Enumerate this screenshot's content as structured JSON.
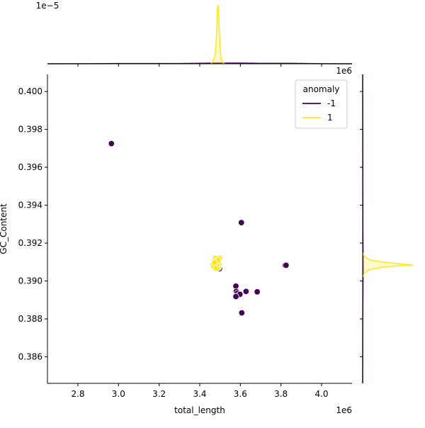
{
  "chart_data": {
    "type": "scatter",
    "xlabel": "total_length",
    "ylabel": "GC_Content",
    "x_offset_label": "1e6",
    "top_x_offset_label": "1e6",
    "top_y_offset_label": "1e−5",
    "xlim": [
      2.65,
      4.15
    ],
    "ylim": [
      0.3846,
      0.4009
    ],
    "x_ticks": [
      "2.8",
      "3.0",
      "3.2",
      "3.4",
      "3.6",
      "3.8",
      "4.0"
    ],
    "x_tick_values": [
      2.8,
      3.0,
      3.2,
      3.4,
      3.6,
      3.8,
      4.0
    ],
    "y_ticks": [
      "0.386",
      "0.388",
      "0.390",
      "0.392",
      "0.394",
      "0.396",
      "0.398",
      "0.400"
    ],
    "y_tick_values": [
      0.386,
      0.388,
      0.39,
      0.392,
      0.394,
      0.396,
      0.398,
      0.4
    ],
    "grid": false,
    "legend": {
      "title": "anomaly",
      "placement": "top-right",
      "entries": [
        {
          "label": "-1",
          "color": "#440154"
        },
        {
          "label": "1",
          "color": "#fde725"
        }
      ]
    },
    "series": [
      {
        "label": "-1",
        "color": "#440154",
        "points": [
          {
            "x": 2.965,
            "y": 0.39725
          },
          {
            "x": 3.605,
            "y": 0.39308
          },
          {
            "x": 3.82,
            "y": 0.39083
          },
          {
            "x": 3.825,
            "y": 0.39083
          },
          {
            "x": 3.578,
            "y": 0.38973
          },
          {
            "x": 3.58,
            "y": 0.38945
          },
          {
            "x": 3.585,
            "y": 0.38935
          },
          {
            "x": 3.592,
            "y": 0.38925
          },
          {
            "x": 3.598,
            "y": 0.3893
          },
          {
            "x": 3.578,
            "y": 0.38918
          },
          {
            "x": 3.628,
            "y": 0.38945
          },
          {
            "x": 3.683,
            "y": 0.38943
          },
          {
            "x": 3.607,
            "y": 0.38832
          },
          {
            "x": 3.488,
            "y": 0.39072
          },
          {
            "x": 3.497,
            "y": 0.39065
          },
          {
            "x": 3.478,
            "y": 0.3908
          },
          {
            "x": 3.469,
            "y": 0.3909
          }
        ]
      },
      {
        "label": "1",
        "color": "#fde725",
        "points": [
          {
            "x": 3.465,
            "y": 0.39085
          },
          {
            "x": 3.472,
            "y": 0.3911
          },
          {
            "x": 3.476,
            "y": 0.39095
          },
          {
            "x": 3.48,
            "y": 0.3908
          },
          {
            "x": 3.484,
            "y": 0.39105
          },
          {
            "x": 3.488,
            "y": 0.39092
          },
          {
            "x": 3.492,
            "y": 0.3907
          },
          {
            "x": 3.494,
            "y": 0.39088
          },
          {
            "x": 3.498,
            "y": 0.3912
          },
          {
            "x": 3.47,
            "y": 0.39075
          },
          {
            "x": 3.478,
            "y": 0.3912
          },
          {
            "x": 3.486,
            "y": 0.39078
          },
          {
            "x": 3.49,
            "y": 0.3911
          },
          {
            "x": 3.473,
            "y": 0.39098
          },
          {
            "x": 3.481,
            "y": 0.39068
          }
        ]
      }
    ],
    "marginal_x_kde": [
      {
        "label": "-1",
        "color": "#440154",
        "points": [
          [
            2.65,
            0
          ],
          [
            2.9,
            0.002
          ],
          [
            3.0,
            0.004
          ],
          [
            3.3,
            0.004
          ],
          [
            3.45,
            0.01
          ],
          [
            3.6,
            0.012
          ],
          [
            3.7,
            0.008
          ],
          [
            3.85,
            0.008
          ],
          [
            4.0,
            0.002
          ],
          [
            4.15,
            0
          ]
        ]
      },
      {
        "label": "1",
        "color": "#fde725",
        "points": [
          [
            3.455,
            0
          ],
          [
            3.465,
            0.04
          ],
          [
            3.472,
            0.1
          ],
          [
            3.478,
            0.2
          ],
          [
            3.483,
            0.55
          ],
          [
            3.487,
            0.93
          ],
          [
            3.49,
            1.0
          ],
          [
            3.493,
            0.9
          ],
          [
            3.496,
            0.6
          ],
          [
            3.5,
            0.28
          ],
          [
            3.505,
            0.08
          ],
          [
            3.515,
            0.01
          ],
          [
            3.525,
            0
          ]
        ]
      }
    ],
    "marginal_y_kde": [
      {
        "label": "-1",
        "color": "#440154",
        "points": [
          [
            0.3846,
            0
          ],
          [
            0.388,
            0.002
          ],
          [
            0.3895,
            0.006
          ],
          [
            0.3908,
            0.009
          ],
          [
            0.393,
            0.004
          ],
          [
            0.3972,
            0.002
          ],
          [
            0.4009,
            0
          ]
        ]
      },
      {
        "label": "1",
        "color": "#fde725",
        "points": [
          [
            0.3902,
            0
          ],
          [
            0.3904,
            0.03
          ],
          [
            0.3906,
            0.12
          ],
          [
            0.39075,
            0.45
          ],
          [
            0.39085,
            1.0
          ],
          [
            0.39095,
            0.55
          ],
          [
            0.3911,
            0.15
          ],
          [
            0.3913,
            0.03
          ],
          [
            0.3915,
            0
          ]
        ]
      }
    ]
  }
}
